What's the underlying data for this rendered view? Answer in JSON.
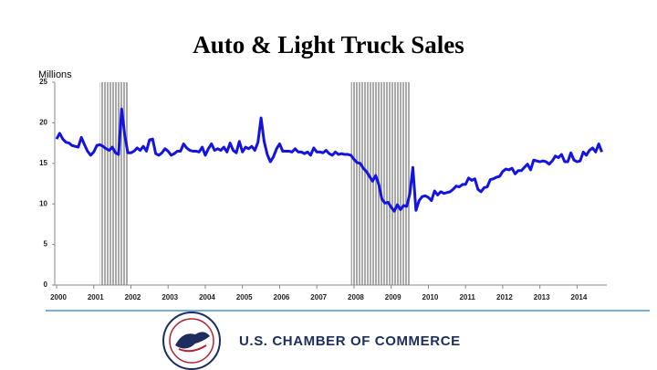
{
  "chart_data": {
    "type": "line",
    "title": "Auto & Light Truck Sales",
    "y_label": "Millions",
    "color": "#1414e0",
    "x": [
      2000,
      2000.083,
      2000.167,
      2000.25,
      2000.333,
      2000.417,
      2000.5,
      2000.583,
      2000.667,
      2000.75,
      2000.833,
      2000.917,
      2001,
      2001.083,
      2001.167,
      2001.25,
      2001.333,
      2001.417,
      2001.5,
      2001.583,
      2001.667,
      2001.75,
      2001.833,
      2001.917,
      2002,
      2002.083,
      2002.167,
      2002.25,
      2002.333,
      2002.417,
      2002.5,
      2002.583,
      2002.667,
      2002.75,
      2002.833,
      2002.917,
      2003,
      2003.083,
      2003.167,
      2003.25,
      2003.333,
      2003.417,
      2003.5,
      2003.583,
      2003.667,
      2003.75,
      2003.833,
      2003.917,
      2004,
      2004.083,
      2004.167,
      2004.25,
      2004.333,
      2004.417,
      2004.5,
      2004.583,
      2004.667,
      2004.75,
      2004.833,
      2004.917,
      2005,
      2005.083,
      2005.167,
      2005.25,
      2005.333,
      2005.417,
      2005.5,
      2005.583,
      2005.667,
      2005.75,
      2005.833,
      2005.917,
      2006,
      2006.083,
      2006.167,
      2006.25,
      2006.333,
      2006.417,
      2006.5,
      2006.583,
      2006.667,
      2006.75,
      2006.833,
      2006.917,
      2007,
      2007.083,
      2007.167,
      2007.25,
      2007.333,
      2007.417,
      2007.5,
      2007.583,
      2007.667,
      2007.75,
      2007.833,
      2007.917,
      2008,
      2008.083,
      2008.167,
      2008.25,
      2008.333,
      2008.417,
      2008.5,
      2008.583,
      2008.667,
      2008.75,
      2008.833,
      2008.917,
      2009,
      2009.083,
      2009.167,
      2009.25,
      2009.333,
      2009.417,
      2009.5,
      2009.583,
      2009.667,
      2009.75,
      2009.833,
      2009.917,
      2010,
      2010.083,
      2010.167,
      2010.25,
      2010.333,
      2010.417,
      2010.5,
      2010.583,
      2010.667,
      2010.75,
      2010.833,
      2010.917,
      2011,
      2011.083,
      2011.167,
      2011.25,
      2011.333,
      2011.417,
      2011.5,
      2011.583,
      2011.667,
      2011.75,
      2011.833,
      2011.917,
      2012,
      2012.083,
      2012.167,
      2012.25,
      2012.333,
      2012.417,
      2012.5,
      2012.583,
      2012.667,
      2012.75,
      2012.833,
      2012.917,
      2013,
      2013.083,
      2013.167,
      2013.25,
      2013.333,
      2013.417,
      2013.5,
      2013.583,
      2013.667,
      2013.75,
      2013.833,
      2013.917,
      2014,
      2014.083,
      2014.167,
      2014.25,
      2014.333,
      2014.417,
      2014.5,
      2014.583,
      2014.667
    ],
    "values": [
      18.0,
      18.7,
      18.0,
      17.6,
      17.5,
      17.2,
      17.1,
      17.0,
      18.2,
      17.3,
      16.5,
      16.0,
      16.4,
      17.2,
      17.3,
      17.1,
      16.8,
      16.6,
      17.0,
      16.3,
      16.1,
      21.7,
      18.5,
      16.3,
      16.3,
      16.5,
      16.9,
      16.6,
      17.1,
      16.5,
      17.9,
      18.0,
      16.2,
      16.0,
      16.3,
      16.8,
      16.5,
      16.0,
      16.2,
      16.5,
      16.5,
      17.4,
      16.9,
      16.6,
      16.5,
      16.5,
      16.4,
      17.0,
      16.0,
      16.8,
      17.4,
      16.6,
      16.8,
      16.6,
      17.0,
      16.4,
      17.5,
      16.6,
      16.3,
      17.7,
      16.4,
      17.0,
      16.8,
      17.1,
      16.6,
      17.6,
      20.6,
      17.7,
      16.1,
      15.2,
      15.8,
      16.8,
      17.4,
      16.5,
      16.5,
      16.5,
      16.4,
      16.8,
      16.4,
      16.4,
      16.2,
      16.4,
      16.0,
      16.9,
      16.4,
      16.4,
      16.3,
      16.6,
      16.2,
      16.0,
      16.4,
      16.1,
      16.2,
      16.1,
      16.1,
      16.0,
      15.5,
      15.1,
      15.0,
      14.4,
      14.0,
      13.4,
      12.8,
      13.5,
      12.4,
      10.6,
      10.1,
      10.2,
      9.6,
      9.1,
      9.9,
      9.3,
      9.8,
      9.7,
      11.2,
      14.5,
      9.2,
      10.4,
      10.9,
      11.0,
      10.8,
      10.4,
      11.6,
      11.1,
      11.5,
      11.3,
      11.4,
      11.5,
      11.8,
      12.2,
      12.1,
      12.4,
      12.4,
      13.2,
      12.9,
      13.1,
      11.8,
      11.5,
      12.0,
      12.1,
      13.0,
      13.1,
      13.3,
      13.4,
      14.0,
      14.3,
      14.2,
      14.4,
      13.7,
      14.1,
      14.1,
      14.5,
      14.9,
      14.2,
      15.4,
      15.3,
      15.2,
      15.3,
      15.2,
      14.9,
      15.3,
      15.9,
      15.7,
      16.1,
      15.2,
      15.2,
      16.3,
      15.4,
      15.2,
      15.3,
      16.4,
      16.0,
      16.6,
      16.9,
      16.4,
      17.4,
      16.4
    ],
    "recessions": [
      [
        2001.167,
        2001.917
      ],
      [
        2007.917,
        2009.5
      ]
    ],
    "xlim": [
      2000,
      2014.8
    ],
    "xticks": [
      2000,
      2001,
      2002,
      2003,
      2004,
      2005,
      2006,
      2007,
      2008,
      2009,
      2010,
      2011,
      2012,
      2013,
      2014
    ],
    "ylim": [
      0,
      25
    ],
    "yticks": [
      0,
      5,
      10,
      15,
      20,
      25
    ],
    "grid": false
  },
  "footer": {
    "organization": "U.S. CHAMBER OF COMMERCE"
  }
}
